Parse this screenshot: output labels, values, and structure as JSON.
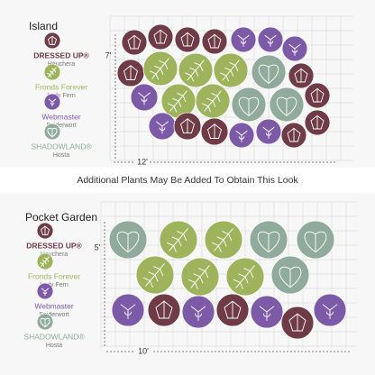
{
  "island": {
    "title": "Island",
    "height": "7'",
    "width": "12'"
  },
  "legend_top": [
    {
      "name": "DRESSED UP®",
      "plant": "Heuchera"
    },
    {
      "name": "Fronds Forever",
      "plant": "Lady Fern"
    },
    {
      "name": "Webmaster",
      "plant": "Spiderwort"
    },
    {
      "name": "SHADOWLAND®",
      "plant": "Hosta"
    }
  ],
  "banner": "Additional Plants May Be Added To Obtain This Look",
  "pocket": {
    "title": "Pocket Garden",
    "height": "5'",
    "width": "10'"
  },
  "legend_bottom": [
    {
      "name": "DRESSED UP®",
      "plant": "Heuchera"
    },
    {
      "name": "Fronds Forever",
      "plant": "Lady Fern"
    },
    {
      "name": "Webmaster",
      "plant": "Spiderwort"
    },
    {
      "name": "SHADOWLAND®",
      "plant": "Hosta"
    }
  ]
}
